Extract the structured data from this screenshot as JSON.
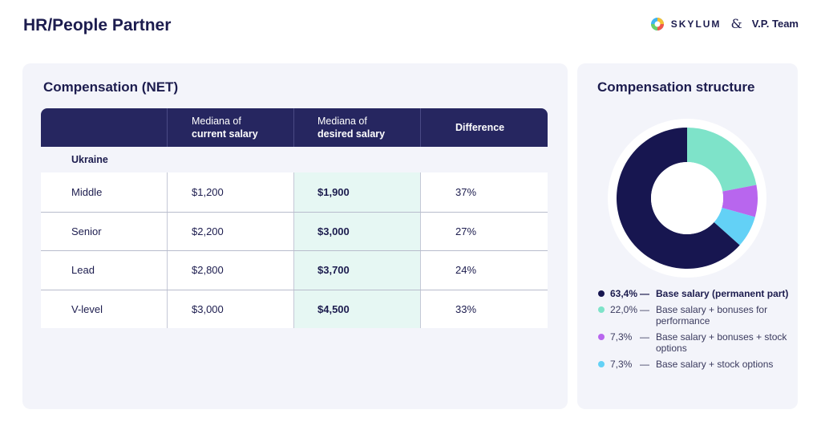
{
  "page": {
    "title": "HR/People Partner"
  },
  "brand": {
    "company": "SKYLUM",
    "ampersand": "&",
    "partner": "V.P. Team"
  },
  "compensation_table": {
    "title": "Compensation (NET)",
    "headers": [
      {
        "line1": "",
        "line2": ""
      },
      {
        "line1": "Mediana of",
        "line2": "current salary"
      },
      {
        "line1": "Mediana of",
        "line2": "desired salary"
      },
      {
        "line1": "Difference",
        "line2": ""
      }
    ],
    "group": "Ukraine",
    "rows": [
      {
        "level": "Middle",
        "current": "$1,200",
        "desired": "$1,900",
        "difference": "37%"
      },
      {
        "level": "Senior",
        "current": "$2,200",
        "desired": "$3,000",
        "difference": "27%"
      },
      {
        "level": "Lead",
        "current": "$2,800",
        "desired": "$3,700",
        "difference": "24%"
      },
      {
        "level": "V-level",
        "current": "$3,000",
        "desired": "$4,500",
        "difference": "33%"
      }
    ]
  },
  "structure": {
    "title": "Compensation structure"
  },
  "chart_data": {
    "type": "pie",
    "title": "Compensation structure",
    "donut": true,
    "slices": [
      {
        "label": "Base salary (permanent part)",
        "value": 63.4,
        "display": "63,4%",
        "color": "#171650"
      },
      {
        "label": "Base salary + bonuses for performance",
        "value": 22.0,
        "display": "22,0%",
        "color": "#7ee3c9"
      },
      {
        "label": "Base salary + bonuses + stock options",
        "value": 7.3,
        "display": "7,3%",
        "color": "#b866ee"
      },
      {
        "label": "Base salary + stock options",
        "value": 7.3,
        "display": "7,3%",
        "color": "#63d1f6"
      }
    ],
    "legend_position": "bottom"
  }
}
